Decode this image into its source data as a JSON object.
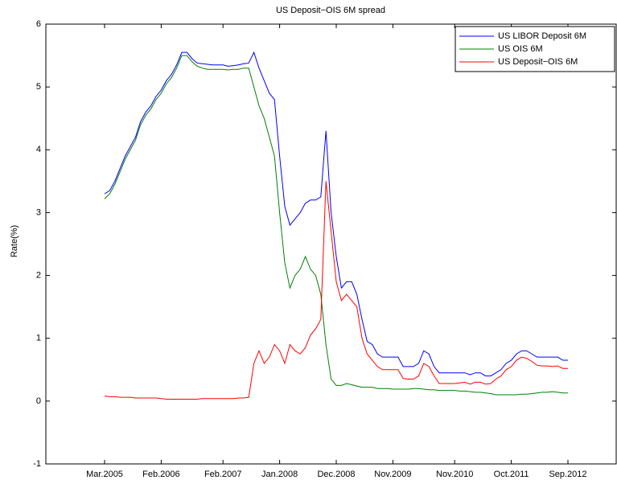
{
  "chart_data": {
    "type": "line",
    "title": "US Deposit−OIS 6M spread",
    "y_label": "Rate(%)",
    "categories": [
      "Mar.2005",
      null,
      null,
      null,
      null,
      null,
      null,
      null,
      null,
      null,
      null,
      "Feb.2006",
      null,
      null,
      null,
      null,
      null,
      null,
      null,
      null,
      null,
      null,
      null,
      "Feb.2007",
      null,
      null,
      null,
      null,
      null,
      null,
      null,
      null,
      null,
      null,
      "Jan.2008",
      null,
      null,
      null,
      null,
      null,
      null,
      null,
      null,
      null,
      null,
      "Dec.2008",
      null,
      null,
      null,
      null,
      null,
      null,
      null,
      null,
      null,
      null,
      "Nov.2009",
      null,
      null,
      null,
      null,
      null,
      null,
      null,
      null,
      null,
      null,
      null,
      "Nov.2010",
      null,
      null,
      null,
      null,
      null,
      null,
      null,
      null,
      null,
      null,
      "Oct.2011",
      null,
      null,
      null,
      null,
      null,
      null,
      null,
      null,
      null,
      null,
      "Sep.2012"
    ],
    "series": [
      {
        "name": "US LIBOR Deposit 6M",
        "color": "#0000ff",
        "values": [
          3.3,
          3.35,
          3.5,
          3.7,
          3.9,
          4.05,
          4.2,
          4.45,
          4.6,
          4.7,
          4.85,
          4.95,
          5.1,
          5.2,
          5.35,
          5.55,
          5.55,
          5.45,
          5.38,
          5.37,
          5.36,
          5.35,
          5.35,
          5.35,
          5.33,
          5.34,
          5.35,
          5.37,
          5.38,
          5.55,
          5.3,
          5.1,
          4.9,
          4.8,
          3.9,
          3.1,
          2.8,
          2.9,
          3.0,
          3.15,
          3.2,
          3.2,
          3.25,
          4.3,
          3.0,
          2.3,
          1.8,
          1.9,
          1.9,
          1.7,
          1.3,
          0.95,
          0.9,
          0.75,
          0.7,
          0.7,
          0.7,
          0.7,
          0.55,
          0.55,
          0.55,
          0.6,
          0.8,
          0.75,
          0.55,
          0.45,
          0.45,
          0.45,
          0.45,
          0.45,
          0.45,
          0.42,
          0.45,
          0.45,
          0.4,
          0.4,
          0.45,
          0.5,
          0.6,
          0.65,
          0.75,
          0.8,
          0.8,
          0.75,
          0.7,
          0.7,
          0.7,
          0.7,
          0.7,
          0.65,
          0.65
        ]
      },
      {
        "name": "US OIS 6M",
        "color": "#008000",
        "values": [
          3.22,
          3.3,
          3.45,
          3.65,
          3.85,
          4.0,
          4.15,
          4.4,
          4.55,
          4.65,
          4.8,
          4.9,
          5.05,
          5.15,
          5.3,
          5.5,
          5.5,
          5.4,
          5.33,
          5.3,
          5.28,
          5.28,
          5.28,
          5.28,
          5.27,
          5.28,
          5.28,
          5.3,
          5.3,
          5.0,
          4.7,
          4.5,
          4.2,
          3.9,
          3.0,
          2.2,
          1.8,
          2.0,
          2.1,
          2.3,
          2.1,
          2.0,
          1.7,
          0.9,
          0.35,
          0.25,
          0.25,
          0.28,
          0.26,
          0.24,
          0.22,
          0.22,
          0.22,
          0.2,
          0.2,
          0.2,
          0.19,
          0.19,
          0.19,
          0.19,
          0.2,
          0.2,
          0.19,
          0.18,
          0.18,
          0.17,
          0.17,
          0.17,
          0.17,
          0.16,
          0.16,
          0.15,
          0.14,
          0.14,
          0.13,
          0.12,
          0.1,
          0.1,
          0.1,
          0.1,
          0.1,
          0.11,
          0.11,
          0.12,
          0.13,
          0.14,
          0.14,
          0.15,
          0.14,
          0.13,
          0.13
        ]
      },
      {
        "name": "US Deposit−OIS 6M",
        "color": "#ff0000",
        "values": [
          0.08,
          0.07,
          0.07,
          0.06,
          0.06,
          0.06,
          0.05,
          0.05,
          0.05,
          0.05,
          0.05,
          0.04,
          0.03,
          0.03,
          0.03,
          0.03,
          0.03,
          0.03,
          0.03,
          0.04,
          0.04,
          0.04,
          0.04,
          0.04,
          0.04,
          0.04,
          0.05,
          0.05,
          0.06,
          0.6,
          0.8,
          0.6,
          0.7,
          0.9,
          0.8,
          0.6,
          0.9,
          0.8,
          0.75,
          0.85,
          1.05,
          1.15,
          1.3,
          3.5,
          2.7,
          1.9,
          1.6,
          1.7,
          1.6,
          1.5,
          1.0,
          0.75,
          0.65,
          0.55,
          0.5,
          0.5,
          0.5,
          0.5,
          0.36,
          0.35,
          0.35,
          0.4,
          0.6,
          0.55,
          0.4,
          0.28,
          0.28,
          0.28,
          0.28,
          0.29,
          0.3,
          0.27,
          0.3,
          0.3,
          0.27,
          0.28,
          0.35,
          0.4,
          0.5,
          0.55,
          0.65,
          0.7,
          0.68,
          0.63,
          0.57,
          0.56,
          0.56,
          0.55,
          0.56,
          0.52,
          0.52
        ]
      }
    ],
    "ylim": [
      -1,
      6
    ],
    "yticks": [
      -1,
      0,
      1,
      2,
      3,
      4,
      5,
      6
    ],
    "legend": "top-right"
  }
}
